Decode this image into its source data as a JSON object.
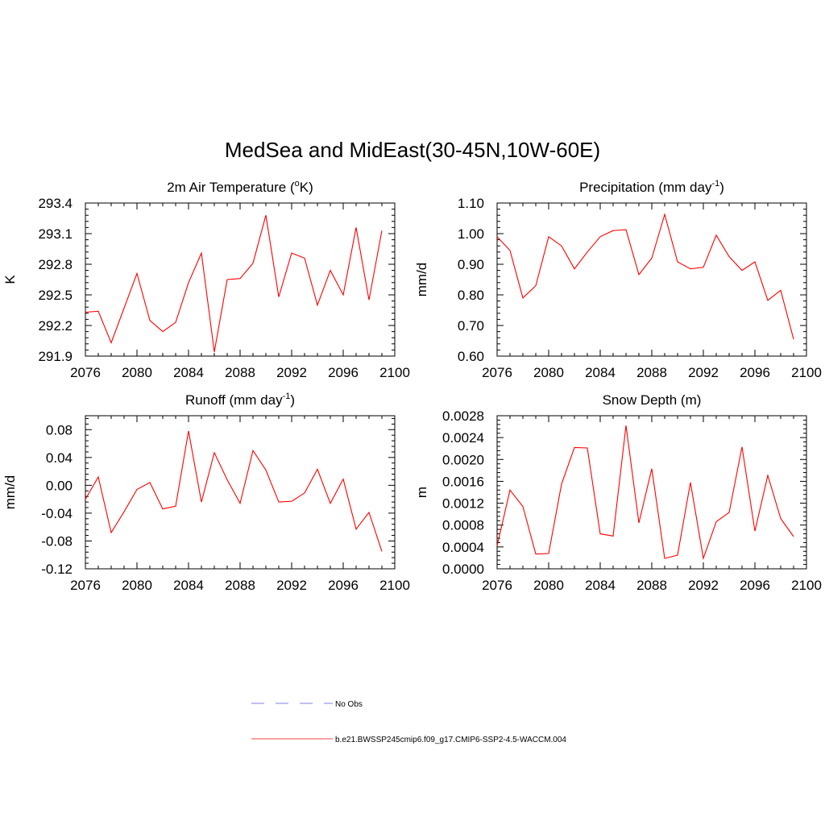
{
  "figure": {
    "title": "MedSea and MidEast(30-45N,10W-60E)"
  },
  "legend": [
    {
      "label": "No Obs",
      "color": "#9a9ae6",
      "dash": true
    },
    {
      "label": "b.e21.BWSSP245cmip6.f09_g17.CMIP6-SSP2-4.5-WACCM.004",
      "color": "#ff6a6a",
      "dash": false
    }
  ],
  "series_color": "#ff0000",
  "chart_data": [
    {
      "type": "line",
      "title_main": "2m Air Temperature (",
      "title_sup": "o",
      "title_tail": "K)",
      "ylabel": "K",
      "xlim": [
        2076,
        2100
      ],
      "ylim": [
        291.9,
        293.4
      ],
      "xticks": [
        "2076",
        "2080",
        "2084",
        "2088",
        "2092",
        "2096",
        "2100"
      ],
      "yticks": [
        "291.9",
        "292.2",
        "292.5",
        "292.8",
        "293.1",
        "293.4"
      ],
      "x": [
        2076,
        2077,
        2078,
        2079,
        2080,
        2081,
        2082,
        2083,
        2084,
        2085,
        2086,
        2087,
        2088,
        2089,
        2090,
        2091,
        2092,
        2093,
        2094,
        2095,
        2096,
        2097,
        2098,
        2099
      ],
      "y": [
        292.33,
        292.34,
        292.03,
        292.37,
        292.71,
        292.25,
        292.14,
        292.23,
        292.62,
        292.91,
        291.94,
        292.65,
        292.66,
        292.81,
        293.28,
        292.48,
        292.91,
        292.86,
        292.4,
        292.74,
        292.5,
        293.16,
        292.45,
        293.13
      ]
    },
    {
      "type": "line",
      "title_main": "Precipitation (mm day",
      "title_sup": "-1",
      "title_tail": ")",
      "ylabel": "mm/d",
      "xlim": [
        2076,
        2100
      ],
      "ylim": [
        0.6,
        1.1
      ],
      "xticks": [
        "2076",
        "2080",
        "2084",
        "2088",
        "2092",
        "2096",
        "2100"
      ],
      "yticks": [
        "0.60",
        "0.70",
        "0.80",
        "0.90",
        "1.00",
        "1.10"
      ],
      "x": [
        2076,
        2077,
        2078,
        2079,
        2080,
        2081,
        2082,
        2083,
        2084,
        2085,
        2086,
        2087,
        2088,
        2089,
        2090,
        2091,
        2092,
        2093,
        2094,
        2095,
        2096,
        2097,
        2098,
        2099
      ],
      "y": [
        0.99,
        0.945,
        0.79,
        0.83,
        0.99,
        0.96,
        0.885,
        0.94,
        0.99,
        1.01,
        1.013,
        0.866,
        0.92,
        1.063,
        0.908,
        0.885,
        0.89,
        0.995,
        0.925,
        0.88,
        0.908,
        0.782,
        0.815,
        0.655
      ]
    },
    {
      "type": "line",
      "title_main": "Runoff (mm day",
      "title_sup": "-1",
      "title_tail": ")",
      "ylabel": "mm/d",
      "xlim": [
        2076,
        2100
      ],
      "ylim": [
        -0.12,
        0.1
      ],
      "xticks": [
        "2076",
        "2080",
        "2084",
        "2088",
        "2092",
        "2096",
        "2100"
      ],
      "yticks": [
        "-0.12",
        "-0.08",
        "-0.04",
        "0.00",
        "0.04",
        "0.08"
      ],
      "ytick_values": [
        -0.12,
        -0.08,
        -0.04,
        0.0,
        0.04,
        0.08
      ],
      "x": [
        2076,
        2077,
        2078,
        2079,
        2080,
        2081,
        2082,
        2083,
        2084,
        2085,
        2086,
        2087,
        2088,
        2089,
        2090,
        2091,
        2092,
        2093,
        2094,
        2095,
        2096,
        2097,
        2098,
        2099
      ],
      "y": [
        -0.02,
        0.012,
        -0.068,
        -0.038,
        -0.006,
        0.004,
        -0.034,
        -0.03,
        0.078,
        -0.024,
        0.047,
        0.008,
        -0.026,
        0.05,
        0.022,
        -0.024,
        -0.023,
        -0.011,
        0.023,
        -0.026,
        0.009,
        -0.063,
        -0.039,
        -0.095
      ]
    },
    {
      "type": "line",
      "title_main": "Snow Depth (m)",
      "title_sup": "",
      "title_tail": "",
      "ylabel": "m",
      "xlim": [
        2076,
        2100
      ],
      "ylim": [
        0.0,
        0.0028
      ],
      "xticks": [
        "2076",
        "2080",
        "2084",
        "2088",
        "2092",
        "2096",
        "2100"
      ],
      "yticks": [
        "0.0000",
        "0.0004",
        "0.0008",
        "0.0012",
        "0.0016",
        "0.0020",
        "0.0024",
        "0.0028"
      ],
      "x": [
        2076,
        2077,
        2078,
        2079,
        2080,
        2081,
        2082,
        2083,
        2084,
        2085,
        2086,
        2087,
        2088,
        2089,
        2090,
        2091,
        2092,
        2093,
        2094,
        2095,
        2096,
        2097,
        2098,
        2099
      ],
      "y": [
        0.00042,
        0.00144,
        0.00114,
        0.00027,
        0.00028,
        0.00155,
        0.00222,
        0.00221,
        0.00064,
        0.0006,
        0.00262,
        0.00084,
        0.00183,
        0.00019,
        0.00025,
        0.00158,
        0.00019,
        0.00086,
        0.00103,
        0.00223,
        0.00069,
        0.00171,
        0.00092,
        0.00059
      ]
    }
  ]
}
